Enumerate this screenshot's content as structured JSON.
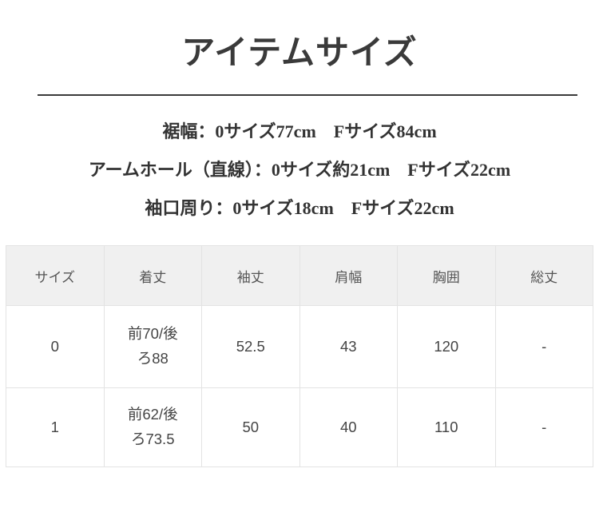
{
  "title": "アイテムサイズ",
  "measurements": [
    "裾幅：0サイズ77cm　Fサイズ84cm",
    "アームホール（直線）：0サイズ約21cm　Fサイズ22cm",
    "袖口周り：0サイズ18cm　Fサイズ22cm"
  ],
  "table": {
    "headers": [
      "サイズ",
      "着丈",
      "袖丈",
      "肩幅",
      "胸囲",
      "総丈"
    ],
    "rows": [
      [
        "0",
        "前70/後\nろ88",
        "52.5",
        "43",
        "120",
        "-"
      ],
      [
        "1",
        "前62/後\nろ73.5",
        "50",
        "40",
        "110",
        "-"
      ]
    ]
  },
  "colors": {
    "text_dark": "#3a3a3a",
    "divider": "#3a3a3a",
    "table_header_bg": "#f0f0f0",
    "table_border": "#e3e3e3",
    "table_header_text": "#555555",
    "table_body_text": "#444444"
  }
}
